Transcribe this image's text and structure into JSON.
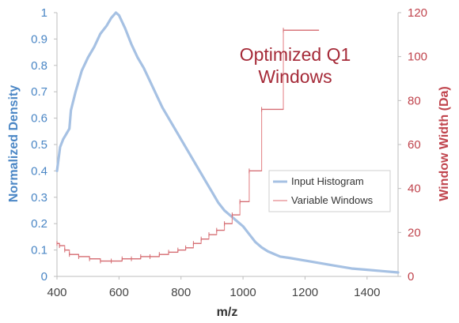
{
  "chart_data": {
    "type": "line",
    "xlabel": "m/z",
    "ylabel_left": "Normalized Density",
    "ylabel_right": "Window Width (Da)",
    "annotation_lines": [
      "Optimized Q1",
      "Windows"
    ],
    "xlim": [
      400,
      1500
    ],
    "ylim_left": [
      0,
      1
    ],
    "ylim_right": [
      0,
      120
    ],
    "x_ticks": [
      "400",
      "600",
      "800",
      "1000",
      "1200",
      "1400"
    ],
    "y_ticks_left": [
      "0",
      "0.1",
      "0.2",
      "0.3",
      "0.4",
      "0.5",
      "0.6",
      "0.7",
      "0.8",
      "0.9",
      "1"
    ],
    "y_ticks_right": [
      "0",
      "20",
      "40",
      "60",
      "80",
      "100",
      "120"
    ],
    "legend_position": "center-right",
    "colors": {
      "histogram": "#a6c1e3",
      "windows": "#e5898d",
      "left_axis": "#4a86c5",
      "right_axis": "#c0444d",
      "annotation": "#a52a38"
    },
    "series": [
      {
        "name": "Input Histogram",
        "axis": "left",
        "x": [
          400,
          410,
          420,
          430,
          440,
          445,
          460,
          480,
          500,
          520,
          540,
          560,
          575,
          590,
          600,
          620,
          640,
          660,
          680,
          700,
          720,
          740,
          760,
          780,
          800,
          820,
          840,
          860,
          880,
          900,
          920,
          940,
          960,
          980,
          1000,
          1020,
          1040,
          1060,
          1080,
          1100,
          1120,
          1150,
          1200,
          1250,
          1300,
          1350,
          1400,
          1450,
          1500
        ],
        "values": [
          0.4,
          0.49,
          0.52,
          0.54,
          0.56,
          0.63,
          0.7,
          0.78,
          0.83,
          0.87,
          0.92,
          0.95,
          0.98,
          1.0,
          0.99,
          0.94,
          0.88,
          0.83,
          0.79,
          0.74,
          0.69,
          0.64,
          0.6,
          0.56,
          0.52,
          0.48,
          0.44,
          0.4,
          0.36,
          0.32,
          0.28,
          0.25,
          0.23,
          0.21,
          0.19,
          0.16,
          0.13,
          0.11,
          0.095,
          0.085,
          0.075,
          0.07,
          0.06,
          0.05,
          0.04,
          0.03,
          0.025,
          0.02,
          0.015
        ]
      },
      {
        "name": "Variable Windows",
        "axis": "right",
        "steps": [
          {
            "x0": 400,
            "x1": 408,
            "y": 15
          },
          {
            "x0": 408,
            "x1": 425,
            "y": 14
          },
          {
            "x0": 425,
            "x1": 440,
            "y": 12
          },
          {
            "x0": 440,
            "x1": 470,
            "y": 10
          },
          {
            "x0": 470,
            "x1": 505,
            "y": 9
          },
          {
            "x0": 505,
            "x1": 540,
            "y": 8
          },
          {
            "x0": 540,
            "x1": 575,
            "y": 7
          },
          {
            "x0": 575,
            "x1": 610,
            "y": 7
          },
          {
            "x0": 610,
            "x1": 640,
            "y": 8
          },
          {
            "x0": 640,
            "x1": 670,
            "y": 8
          },
          {
            "x0": 670,
            "x1": 700,
            "y": 9
          },
          {
            "x0": 700,
            "x1": 730,
            "y": 9
          },
          {
            "x0": 730,
            "x1": 760,
            "y": 10
          },
          {
            "x0": 760,
            "x1": 790,
            "y": 11
          },
          {
            "x0": 790,
            "x1": 815,
            "y": 12
          },
          {
            "x0": 815,
            "x1": 840,
            "y": 13
          },
          {
            "x0": 840,
            "x1": 865,
            "y": 15
          },
          {
            "x0": 865,
            "x1": 890,
            "y": 17
          },
          {
            "x0": 890,
            "x1": 915,
            "y": 19
          },
          {
            "x0": 915,
            "x1": 940,
            "y": 21
          },
          {
            "x0": 940,
            "x1": 965,
            "y": 24
          },
          {
            "x0": 965,
            "x1": 990,
            "y": 28
          },
          {
            "x0": 990,
            "x1": 1020,
            "y": 34
          },
          {
            "x0": 1020,
            "x1": 1060,
            "y": 48
          },
          {
            "x0": 1060,
            "x1": 1130,
            "y": 76
          },
          {
            "x0": 1130,
            "x1": 1245,
            "y": 112
          }
        ]
      }
    ]
  }
}
